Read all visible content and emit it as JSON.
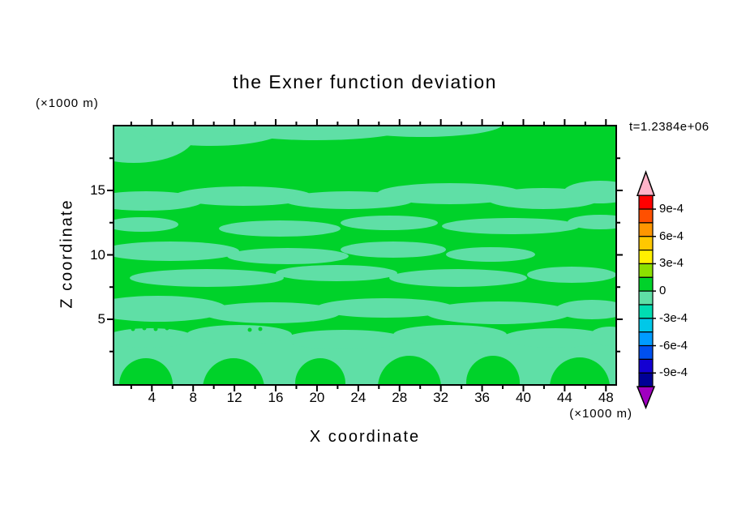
{
  "chart": {
    "title": "the Exner function deviation",
    "time_label": "t=1.2384e+06",
    "xlabel": "X coordinate",
    "ylabel": "Z coordinate",
    "x_unit": "(×1000 m)",
    "z_unit": "(×1000 m)",
    "x_ticks": [
      4,
      8,
      12,
      16,
      20,
      24,
      28,
      32,
      36,
      40,
      44,
      48
    ],
    "y_ticks": [
      5,
      10,
      15
    ],
    "field_colors": {
      "positive_band": "#00d22a",
      "negative_band": "#5fdfa6"
    },
    "colorbar": {
      "tick_labels": [
        "9e-4",
        "6e-4",
        "3e-4",
        "0",
        "-3e-4",
        "-6e-4",
        "-9e-4"
      ],
      "colors_top_to_bottom": [
        "#ff0000",
        "#ff5000",
        "#ff9600",
        "#ffc800",
        "#fff000",
        "#8ce000",
        "#00d22a",
        "#5fdfa6",
        "#00ddb2",
        "#00c8e8",
        "#009cff",
        "#0050f0",
        "#1400d2",
        "#000096"
      ],
      "arrow_top_color": "#ffb3c8",
      "arrow_bottom_color": "#a000c0"
    }
  },
  "chart_data": {
    "type": "heatmap",
    "subtype": "filled-contour",
    "title": "the Exner function deviation",
    "xlabel": "X coordinate",
    "ylabel": "Z coordinate",
    "x_unit": "(×1000 m)",
    "y_unit": "(×1000 m)",
    "time_annotation": "t=1.2384e+06",
    "xlim": [
      0,
      49
    ],
    "ylim": [
      0,
      20
    ],
    "x_ticks": [
      4,
      8,
      12,
      16,
      20,
      24,
      28,
      32,
      36,
      40,
      44,
      48
    ],
    "y_ticks": [
      5,
      10,
      15
    ],
    "contour_interval": 0.00015,
    "labeled_levels": [
      -0.0009,
      -0.0006,
      -0.0003,
      0,
      0.0003,
      0.0006,
      0.0009
    ],
    "colorbar_levels_top_to_bottom_colors": [
      "#ff0000",
      "#ff5000",
      "#ff9600",
      "#ffc800",
      "#fff000",
      "#8ce000",
      "#00d22a",
      "#5fdfa6",
      "#00ddb2",
      "#00c8e8",
      "#009cff",
      "#0050f0",
      "#1400d2",
      "#000096"
    ],
    "field_summary": "Deviation values lie almost entirely within -1.5e-4 to +1.5e-4: green (0 to 1.5e-4) dominates the domain, with wavy horizontal bands of pale green (-1.5e-4 to 0) near z≈14.5, 12, 10, 8 and 6 (×1000 m), a pale-green layer below z≈4 broken by green blobs reaching the lower boundary, and a pale-green strip along the upper-left boundary."
  }
}
